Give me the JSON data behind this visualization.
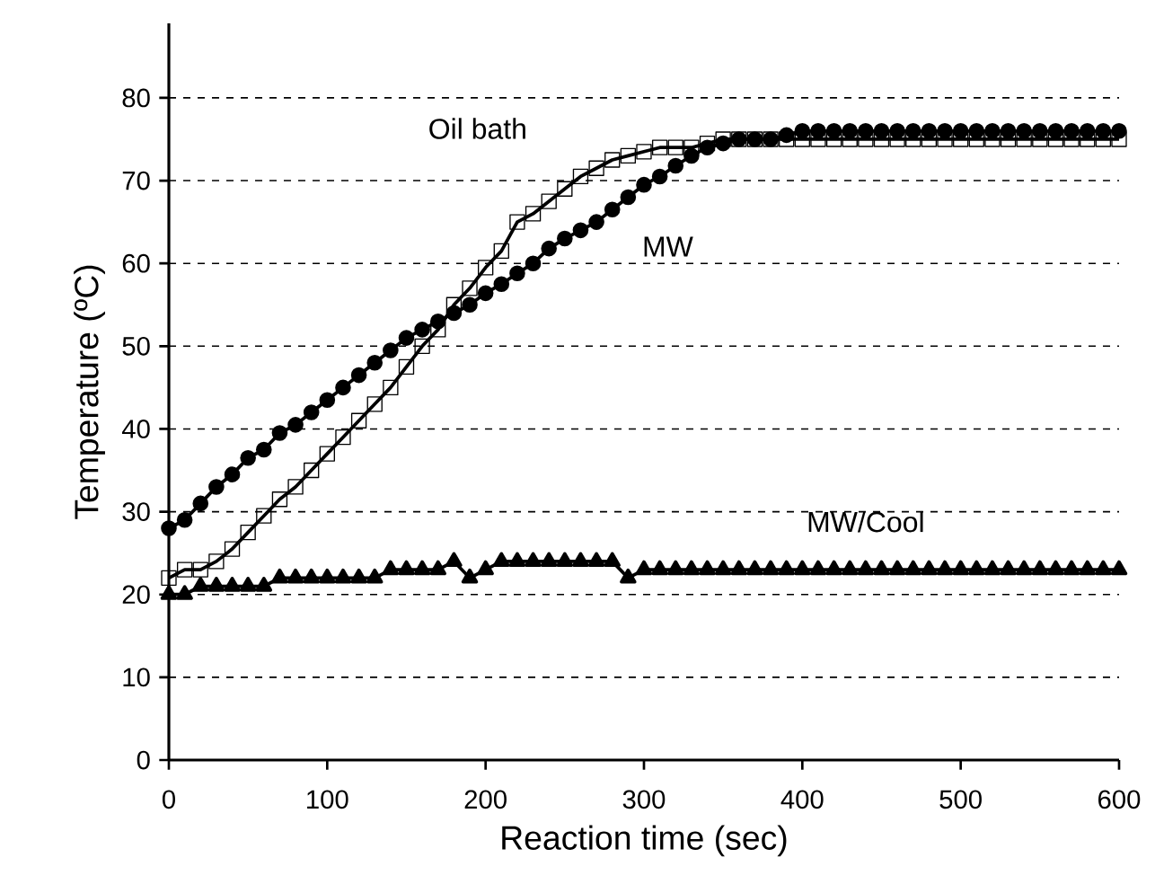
{
  "chart_data": {
    "type": "line",
    "xlabel": "Reaction time (sec)",
    "ylabel": "Temperature (ºC)",
    "x": [
      0,
      10,
      20,
      30,
      40,
      50,
      60,
      70,
      80,
      90,
      100,
      110,
      120,
      130,
      140,
      150,
      160,
      170,
      180,
      190,
      200,
      210,
      220,
      230,
      240,
      250,
      260,
      270,
      280,
      290,
      300,
      310,
      320,
      330,
      340,
      350,
      360,
      370,
      380,
      390,
      400,
      410,
      420,
      430,
      440,
      450,
      460,
      470,
      480,
      490,
      500,
      510,
      520,
      530,
      540,
      550,
      560,
      570,
      580,
      590,
      600
    ],
    "series": [
      {
        "name": "Oil bath",
        "color": "#000000",
        "marker": "square",
        "line_style": "solid",
        "values": [
          22,
          23,
          23,
          24,
          25.5,
          27.5,
          29.5,
          31.5,
          33,
          35,
          37,
          39,
          41,
          43,
          45,
          47.5,
          50,
          52,
          55,
          57,
          59.5,
          61.5,
          65,
          66,
          67.5,
          69,
          70.5,
          71.5,
          72.5,
          73,
          73.5,
          74,
          74,
          74,
          74.5,
          75,
          75,
          75,
          75,
          75,
          75,
          75,
          75,
          75,
          75,
          75,
          75,
          75,
          75,
          75,
          75,
          75,
          75,
          75,
          75,
          75,
          75,
          75,
          75,
          75,
          75
        ]
      },
      {
        "name": "MW",
        "color": "#000000",
        "marker": "circle",
        "line_style": "solid",
        "values": [
          28,
          29,
          31,
          33,
          34.5,
          36.5,
          37.5,
          39.5,
          40.5,
          42,
          43.5,
          45,
          46.5,
          48,
          49.5,
          51,
          52,
          53,
          54,
          55,
          56.4,
          57.5,
          58.8,
          60,
          61.8,
          63,
          64,
          65,
          66.5,
          68,
          69.5,
          70.5,
          71.8,
          73,
          74,
          74.5,
          75,
          75,
          75,
          75.5,
          76,
          76,
          76,
          76,
          76,
          76,
          76,
          76,
          76,
          76,
          76,
          76,
          76,
          76,
          76,
          76,
          76,
          76,
          76,
          76,
          76
        ]
      },
      {
        "name": "MW/Cool",
        "color": "#000000",
        "marker": "triangle",
        "line_style": "solid",
        "values": [
          20,
          20,
          21,
          21,
          21,
          21,
          21,
          22,
          22,
          22,
          22,
          22,
          22,
          22,
          23,
          23,
          23,
          23,
          24,
          22,
          23,
          24,
          24,
          24,
          24,
          24,
          24,
          24,
          24,
          22,
          23,
          23,
          23,
          23,
          23,
          23,
          23,
          23,
          23,
          23,
          23,
          23,
          23,
          23,
          23,
          23,
          23,
          23,
          23,
          23,
          23,
          23,
          23,
          23,
          23,
          23,
          23,
          23,
          23,
          23,
          23
        ]
      }
    ],
    "xlim": [
      0,
      600
    ],
    "xticks": [
      0,
      100,
      200,
      300,
      400,
      500,
      600
    ],
    "ylim": [
      0,
      89
    ],
    "yticks": [
      0,
      10,
      20,
      30,
      40,
      50,
      60,
      70,
      80
    ],
    "grid": "y",
    "legend": false
  }
}
